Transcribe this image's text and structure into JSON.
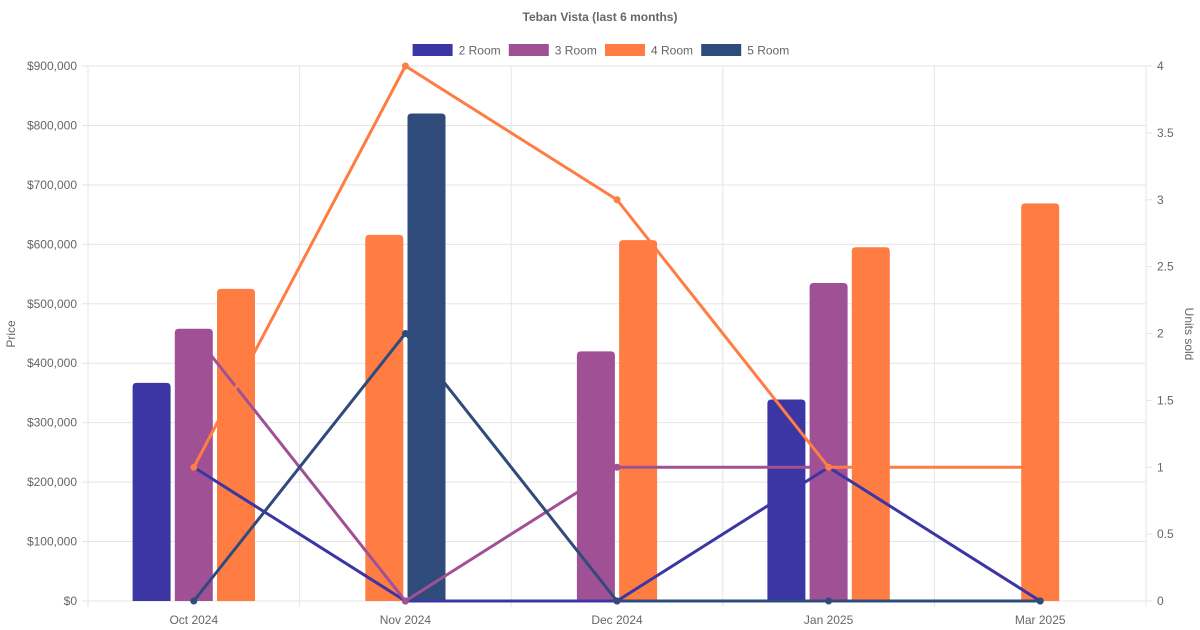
{
  "chart_data": {
    "type": "bar",
    "title": "Teban Vista (last 6 months)",
    "categories": [
      "Oct 2024",
      "Nov 2024",
      "Dec 2024",
      "Jan 2025",
      "Mar 2025"
    ],
    "y_left": {
      "label": "Price",
      "min": 0,
      "max": 900000,
      "step": 100000,
      "tick_labels": [
        "$0",
        "$100,000",
        "$200,000",
        "$300,000",
        "$400,000",
        "$500,000",
        "$600,000",
        "$700,000",
        "$800,000",
        "$900,000"
      ]
    },
    "y_right": {
      "label": "Units sold",
      "min": 0,
      "max": 4,
      "step": 0.5,
      "tick_labels": [
        "0",
        "0.5",
        "1",
        "1.5",
        "2",
        "2.5",
        "3",
        "3.5",
        "4"
      ]
    },
    "series": [
      {
        "name": "2 Room",
        "color": "#3b36a3",
        "price": [
          367000,
          null,
          null,
          339000,
          null
        ],
        "units": [
          1,
          0,
          0,
          1,
          0
        ]
      },
      {
        "name": "3 Room",
        "color": "#a05195",
        "price": [
          458000,
          null,
          420000,
          535000,
          null
        ],
        "units": [
          2,
          0,
          1,
          1,
          null
        ]
      },
      {
        "name": "4 Room",
        "color": "#ff7c43",
        "price": [
          525000,
          616000,
          607000,
          595000,
          669000
        ],
        "units": [
          1,
          4,
          3,
          1,
          1
        ]
      },
      {
        "name": "5 Room",
        "color": "#2f4b7c",
        "price": [
          null,
          820000,
          null,
          null,
          null
        ],
        "units": [
          0,
          2,
          0,
          0,
          0
        ]
      }
    ],
    "legend_position": "top"
  }
}
